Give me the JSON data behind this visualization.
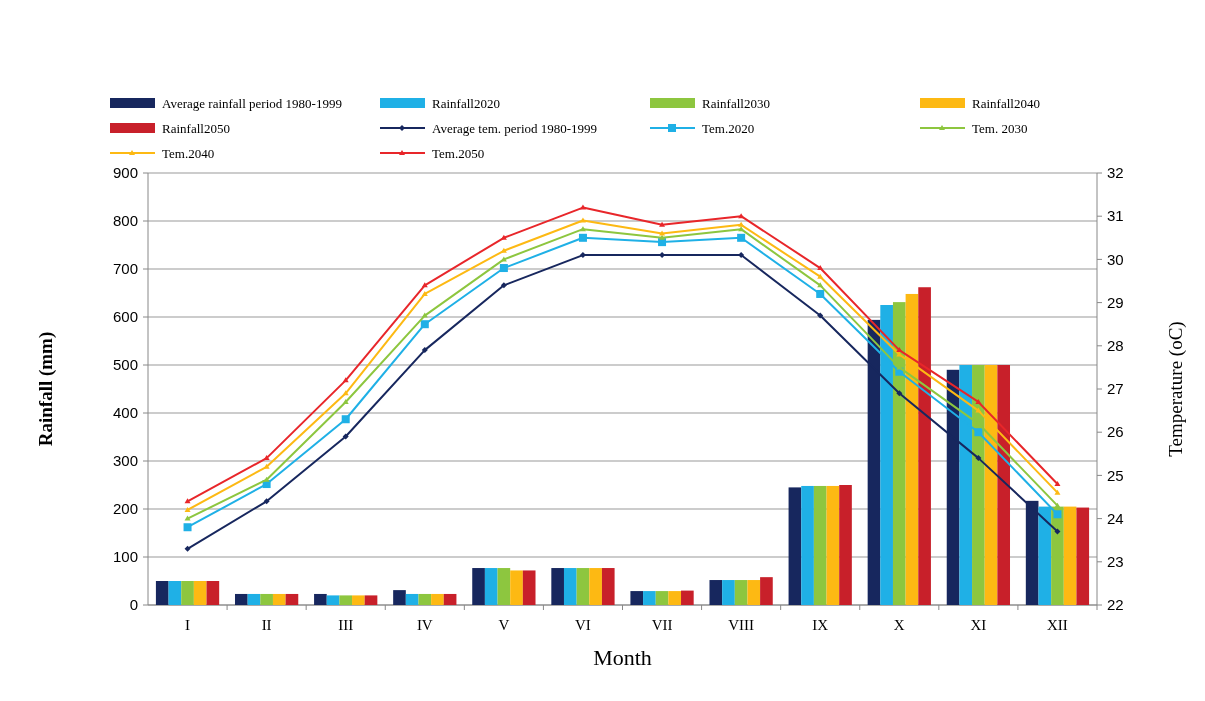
{
  "chart_data": {
    "type": "bar",
    "xlabel": "Month",
    "ylabel": "Rainfall (mm)",
    "y2label": "Temperature (oC)",
    "categories": [
      "I",
      "II",
      "III",
      "IV",
      "V",
      "VI",
      "VII",
      "VIII",
      "IX",
      "X",
      "XI",
      "XII"
    ],
    "ylim": [
      0,
      900
    ],
    "yticks": [
      0,
      100,
      200,
      300,
      400,
      500,
      600,
      700,
      800,
      900
    ],
    "y2lim": [
      22,
      32
    ],
    "y2ticks": [
      22,
      23,
      24,
      25,
      26,
      27,
      28,
      29,
      30,
      31,
      32
    ],
    "grid": "y",
    "legend": "top",
    "series": [
      {
        "name": "Average rainfall period 1980-1999",
        "color": "#17275e",
        "values": [
          50,
          23,
          23,
          31,
          77,
          77,
          29,
          52,
          245,
          594,
          490,
          217
        ]
      },
      {
        "name": "Rainfall2020",
        "color": "#1fb0e6",
        "values": [
          50,
          23,
          20,
          23,
          77,
          77,
          29,
          52,
          248,
          625,
          500,
          205
        ]
      },
      {
        "name": "Rainfall2030",
        "color": "#8dc63f",
        "values": [
          50,
          23,
          20,
          23,
          77,
          77,
          29,
          52,
          248,
          631,
          500,
          205
        ]
      },
      {
        "name": "Rainfall2040",
        "color": "#fdb913",
        "values": [
          50,
          23,
          20,
          23,
          72,
          77,
          29,
          52,
          248,
          648,
          500,
          205
        ]
      },
      {
        "name": "Rainfall2050",
        "color": "#c8202a",
        "values": [
          50,
          23,
          20,
          23,
          72,
          77,
          30,
          58,
          250,
          662,
          500,
          203
        ]
      },
      {
        "name": "Average tem. period 1980-1999",
        "type": "line",
        "axis": "y2",
        "marker": "diamond",
        "color": "#17275e",
        "values": [
          23.3,
          24.4,
          25.9,
          27.9,
          29.4,
          30.1,
          30.1,
          30.1,
          28.7,
          26.9,
          25.4,
          23.7
        ]
      },
      {
        "name": "Tem.2020",
        "type": "line",
        "axis": "y2",
        "marker": "square",
        "color": "#1fb0e6",
        "values": [
          23.8,
          24.8,
          26.3,
          28.5,
          29.8,
          30.5,
          30.4,
          30.5,
          29.2,
          27.4,
          26.0,
          24.1
        ]
      },
      {
        "name": "Tem. 2030",
        "type": "line",
        "axis": "y2",
        "marker": "triangle",
        "color": "#8dc63f",
        "values": [
          24.0,
          24.9,
          26.7,
          28.7,
          30.0,
          30.7,
          30.5,
          30.7,
          29.4,
          27.5,
          26.2,
          24.3
        ]
      },
      {
        "name": "Tem.2040",
        "type": "line",
        "axis": "y2",
        "marker": "triangle",
        "color": "#fdb913",
        "values": [
          24.2,
          25.2,
          26.9,
          29.2,
          30.2,
          30.9,
          30.6,
          30.8,
          29.6,
          27.8,
          26.5,
          24.6
        ]
      },
      {
        "name": "Tem.2050",
        "type": "line",
        "axis": "y2",
        "marker": "triangle",
        "color": "#e8262a",
        "values": [
          24.4,
          25.4,
          27.2,
          29.4,
          30.5,
          31.2,
          30.8,
          31.0,
          29.8,
          27.9,
          26.7,
          24.8
        ]
      }
    ]
  }
}
